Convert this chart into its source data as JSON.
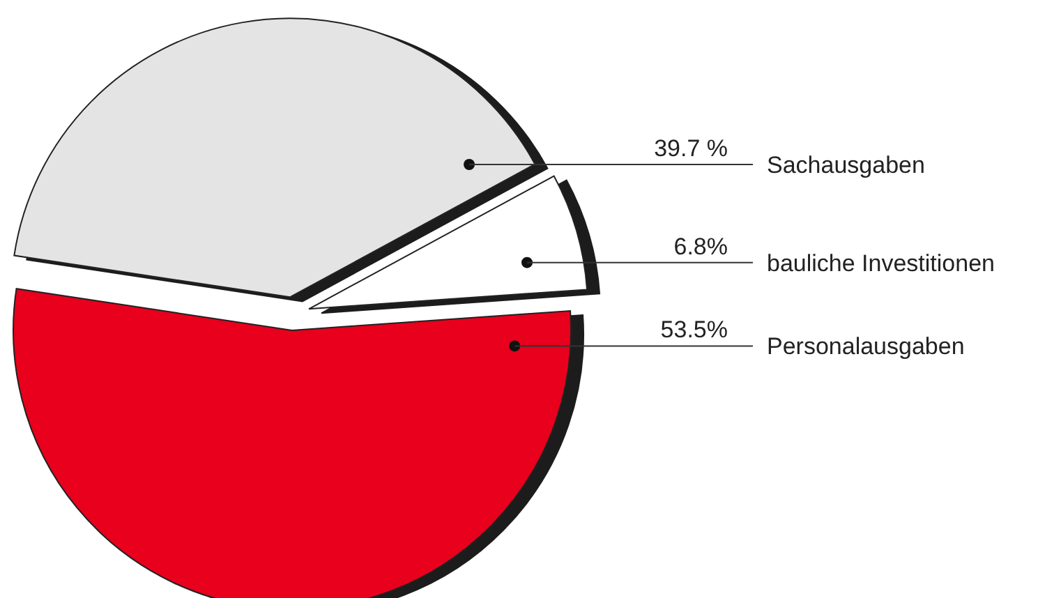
{
  "chart_data": {
    "type": "pie",
    "categories": [
      "Sachausgaben",
      "bauliche Investitionen",
      "Personalausgaben"
    ],
    "values": [
      39.7,
      6.8,
      53.5
    ],
    "colors": [
      "#e4e4e4",
      "#ffffff",
      "#e8001c"
    ],
    "value_labels": [
      "39.7 %",
      "6.8%",
      "53.5%"
    ]
  }
}
